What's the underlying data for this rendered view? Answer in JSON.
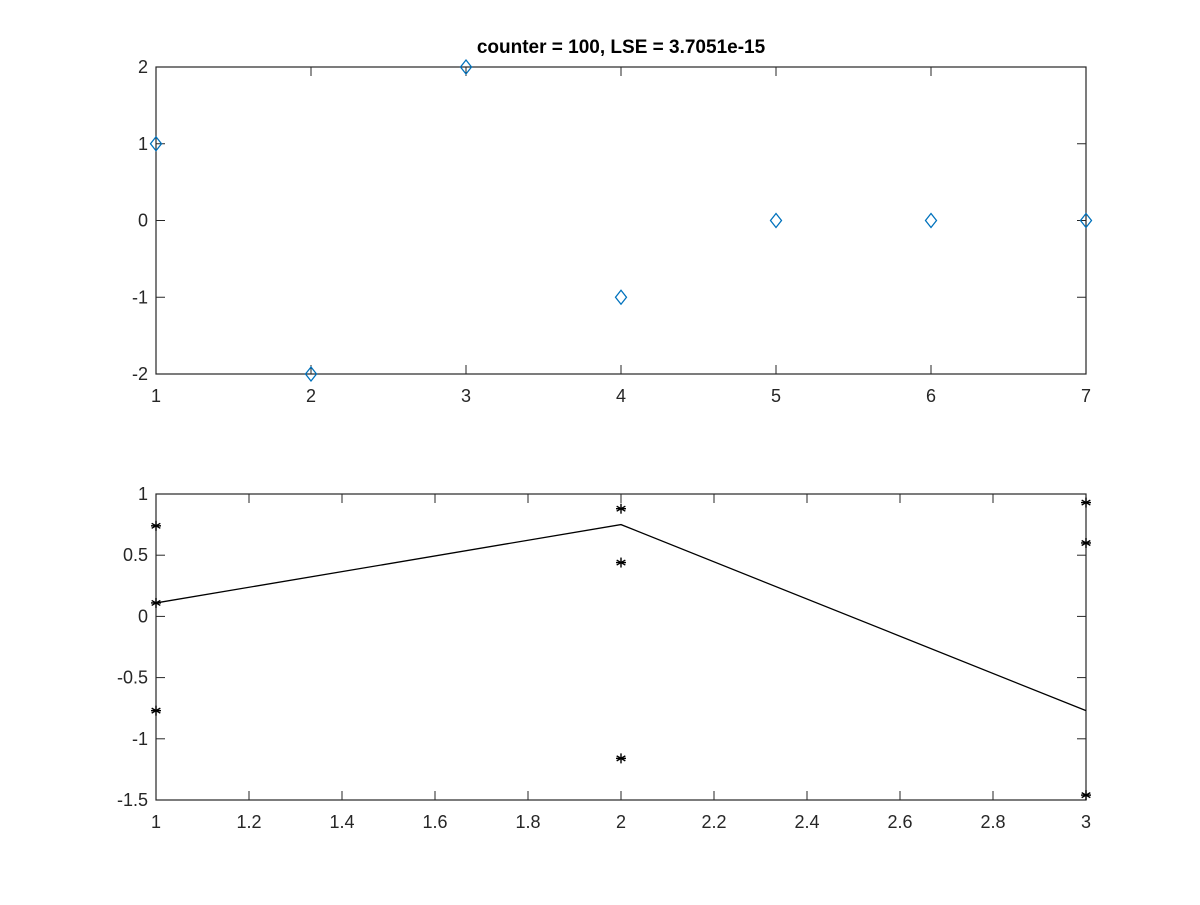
{
  "chart_data": [
    {
      "type": "scatter",
      "title": "counter = 100, LSE = 3.7051e-15",
      "xlabel": "",
      "ylabel": "",
      "xlim": [
        1,
        7
      ],
      "ylim": [
        -2,
        2
      ],
      "xticks": [
        "1",
        "2",
        "3",
        "4",
        "5",
        "6",
        "7"
      ],
      "yticks": [
        "-2",
        "-1",
        "0",
        "1",
        "2"
      ],
      "grid": false,
      "legend": "none",
      "marker": "diamond",
      "color": "#0072BD",
      "series": [
        {
          "x": [
            1,
            2,
            3,
            4,
            5,
            6,
            7
          ],
          "y": [
            1,
            -2,
            2,
            -1,
            0,
            0,
            0
          ]
        }
      ]
    },
    {
      "type": "line",
      "title": "",
      "xlabel": "",
      "ylabel": "",
      "xlim": [
        1,
        3
      ],
      "ylim": [
        -1.5,
        1
      ],
      "xticks": [
        "1",
        "1.2",
        "1.4",
        "1.6",
        "1.8",
        "2",
        "2.2",
        "2.4",
        "2.6",
        "2.8",
        "3"
      ],
      "yticks": [
        "-1.5",
        "-1",
        "-0.5",
        "0",
        "0.5",
        "1"
      ],
      "grid": false,
      "legend": "none",
      "color": "#000000",
      "series": [
        {
          "style": "line",
          "x": [
            1,
            2,
            3
          ],
          "y": [
            0.11,
            0.75,
            -0.77
          ]
        },
        {
          "style": "asterisk",
          "x": [
            1,
            1,
            1,
            2,
            2,
            2,
            3,
            3,
            3
          ],
          "y": [
            0.74,
            0.11,
            -0.77,
            0.88,
            0.44,
            -1.16,
            0.93,
            0.6,
            -1.46
          ]
        }
      ]
    }
  ]
}
